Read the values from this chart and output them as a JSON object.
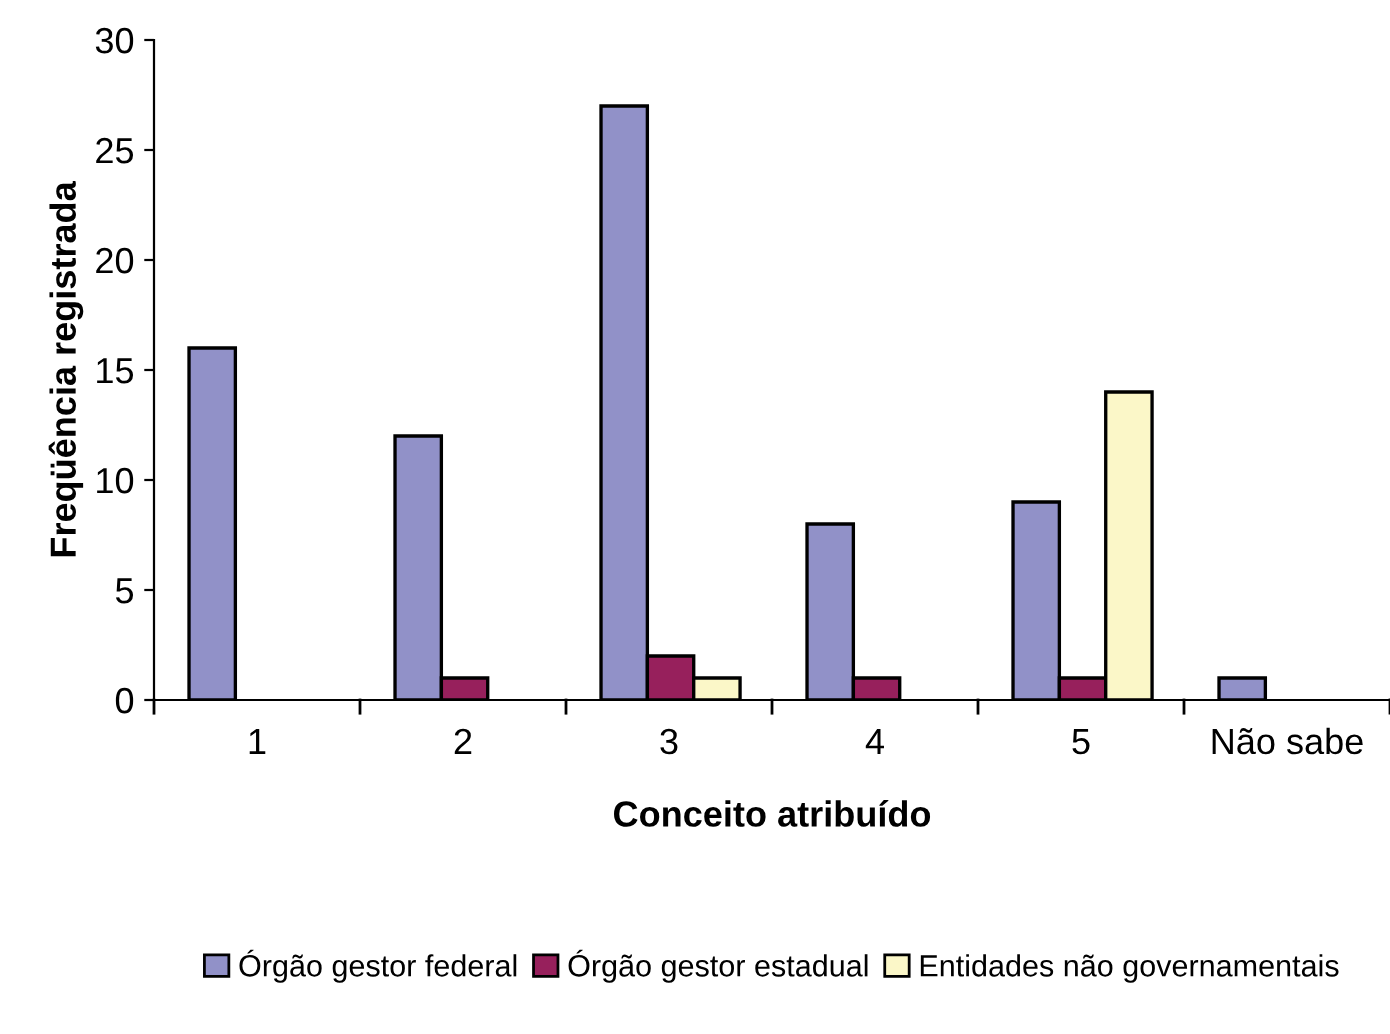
{
  "chart_data": {
    "type": "bar",
    "xlabel": "Conceito atribuído",
    "ylabel": "Freqüência registrada",
    "categories": [
      "1",
      "2",
      "3",
      "4",
      "5",
      "Não sabe"
    ],
    "series": [
      {
        "name": "Órgão gestor federal",
        "color": "#9191c8",
        "values": [
          16,
          12,
          27,
          8,
          9,
          1
        ]
      },
      {
        "name": "Órgão gestor estadual",
        "color": "#97205c",
        "values": [
          null,
          1,
          2,
          1,
          1,
          null
        ]
      },
      {
        "name": "Entidades não governamentais",
        "color": "#fbf7c8",
        "values": [
          null,
          null,
          1,
          null,
          14,
          null
        ]
      }
    ],
    "ylim": [
      0,
      30
    ],
    "yticks": [
      0,
      5,
      10,
      15,
      20,
      25,
      30
    ],
    "grid": false,
    "legend": "bottom"
  }
}
